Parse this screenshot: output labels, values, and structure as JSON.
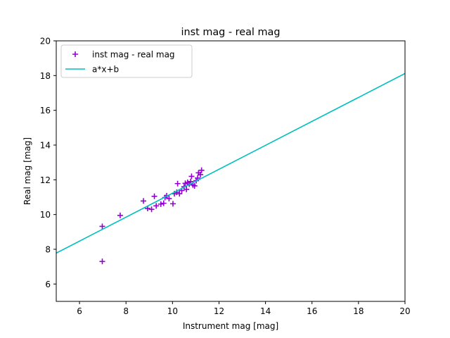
{
  "chart_data": {
    "type": "scatter",
    "title": "inst mag - real mag",
    "xlabel": "Instrument mag [mag]",
    "ylabel": "Real mag [mag]",
    "xlim": [
      5,
      20
    ],
    "ylim": [
      5,
      20
    ],
    "xticks": [
      6,
      8,
      10,
      12,
      14,
      16,
      18,
      20
    ],
    "yticks": [
      6,
      8,
      10,
      12,
      14,
      16,
      18,
      20
    ],
    "grid": false,
    "legend_position": "top-left",
    "series": [
      {
        "name": "inst mag - real mag",
        "kind": "scatter",
        "marker": "plus",
        "color": "#9400d3",
        "points": [
          [
            6.98,
            9.32
          ],
          [
            6.98,
            7.3
          ],
          [
            7.75,
            9.95
          ],
          [
            8.75,
            10.78
          ],
          [
            8.93,
            10.35
          ],
          [
            9.1,
            10.3
          ],
          [
            9.22,
            11.05
          ],
          [
            9.3,
            10.5
          ],
          [
            9.5,
            10.6
          ],
          [
            9.62,
            10.65
          ],
          [
            9.68,
            10.98
          ],
          [
            9.75,
            11.08
          ],
          [
            9.85,
            10.92
          ],
          [
            10.02,
            10.62
          ],
          [
            10.08,
            11.2
          ],
          [
            10.18,
            11.28
          ],
          [
            10.22,
            11.78
          ],
          [
            10.3,
            11.2
          ],
          [
            10.4,
            11.38
          ],
          [
            10.5,
            11.6
          ],
          [
            10.55,
            11.8
          ],
          [
            10.6,
            11.45
          ],
          [
            10.65,
            11.85
          ],
          [
            10.72,
            11.75
          ],
          [
            10.78,
            11.9
          ],
          [
            10.82,
            12.2
          ],
          [
            10.88,
            11.7
          ],
          [
            10.95,
            11.65
          ],
          [
            11.02,
            11.95
          ],
          [
            11.08,
            12.1
          ],
          [
            11.12,
            12.4
          ],
          [
            11.2,
            12.3
          ],
          [
            11.25,
            12.55
          ]
        ]
      },
      {
        "name": "a*x+b",
        "kind": "line",
        "color": "#00bfbf",
        "points": [
          [
            5.0,
            7.78
          ],
          [
            20.0,
            18.12
          ]
        ]
      }
    ]
  }
}
